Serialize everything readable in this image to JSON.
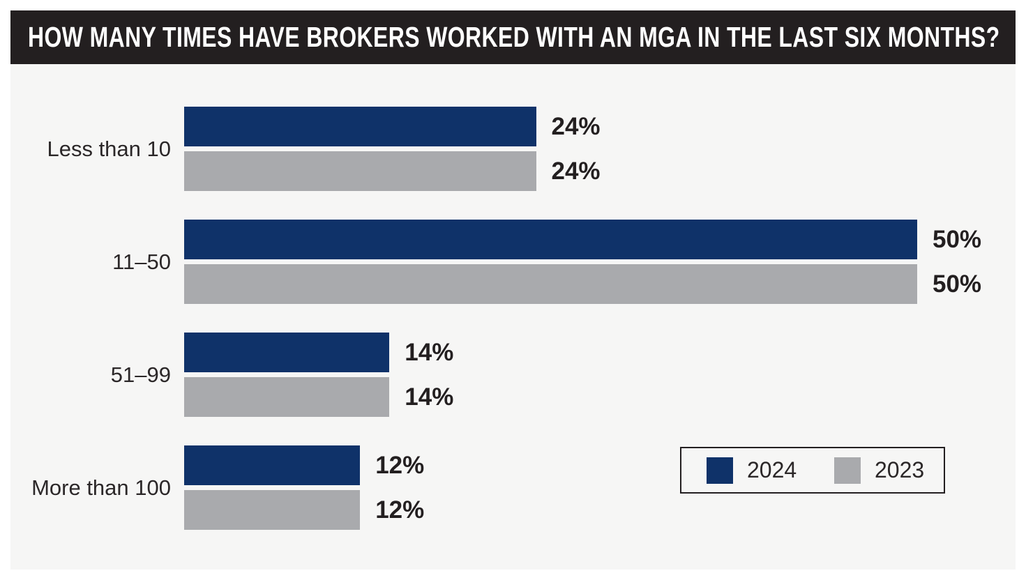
{
  "title": "HOW MANY TIMES HAVE BROKERS WORKED WITH AN MGA IN THE LAST SIX MONTHS?",
  "chart_data": {
    "type": "bar",
    "orientation": "horizontal",
    "title": "HOW MANY TIMES HAVE BROKERS WORKED WITH AN MGA IN THE LAST SIX MONTHS?",
    "categories": [
      "Less than 10",
      "11–50",
      "51–99",
      "More than 100"
    ],
    "series": [
      {
        "name": "2024",
        "color": "#0f3269",
        "values": [
          24,
          50,
          14,
          12
        ],
        "labels": [
          "24%",
          "50%",
          "14%",
          "12%"
        ]
      },
      {
        "name": "2023",
        "color": "#a9aaad",
        "values": [
          24,
          50,
          14,
          12
        ],
        "labels": [
          "24%",
          "50%",
          "14%",
          "12%"
        ]
      }
    ],
    "xlim": [
      0,
      55
    ],
    "grid": false,
    "legend_position": "bottom-right",
    "value_label_format": "percent"
  },
  "colors": {
    "title_bar_bg": "#231f20",
    "title_text": "#ffffff",
    "panel_bg": "#f6f6f5",
    "page_bg": "#ffffff",
    "label_text": "#2b2728",
    "value_text": "#231f20",
    "legend_border": "#231f20",
    "series_2024": "#0f3269",
    "series_2023": "#a9aaad"
  }
}
